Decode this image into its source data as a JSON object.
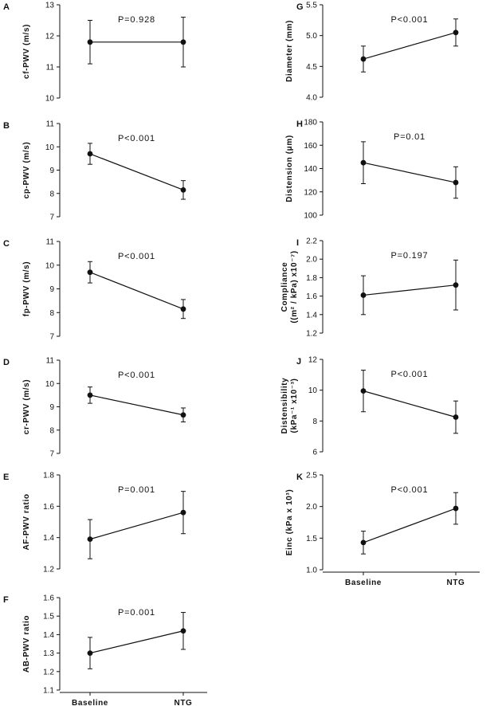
{
  "chart_data": [
    {
      "id": "A",
      "type": "line",
      "panel": "A",
      "ylabel": "cf-PWV (m/s)",
      "categories": [
        "Baseline",
        "NTG"
      ],
      "values": [
        11.8,
        11.8
      ],
      "err": [
        0.7,
        0.8
      ],
      "ylim": [
        10,
        13
      ],
      "yticks": [
        "10",
        "11",
        "12",
        "13"
      ],
      "pvalue": "P=0.928",
      "xlabel": ""
    },
    {
      "id": "B",
      "type": "line",
      "panel": "B",
      "ylabel": "cp-PWV (m/s)",
      "categories": [
        "Baseline",
        "NTG"
      ],
      "values": [
        9.7,
        8.15
      ],
      "err": [
        0.45,
        0.4
      ],
      "ylim": [
        7,
        11
      ],
      "yticks": [
        "7",
        "8",
        "9",
        "10",
        "11"
      ],
      "pvalue": "P<0.001",
      "xlabel": ""
    },
    {
      "id": "C",
      "type": "line",
      "panel": "C",
      "ylabel": "fp-PWV (m/s)",
      "categories": [
        "Baseline",
        "NTG"
      ],
      "values": [
        9.7,
        8.15
      ],
      "err": [
        0.45,
        0.4
      ],
      "ylim": [
        7,
        11
      ],
      "yticks": [
        "7",
        "8",
        "9",
        "10",
        "11"
      ],
      "pvalue": "P<0.001",
      "xlabel": ""
    },
    {
      "id": "D",
      "type": "line",
      "panel": "D",
      "ylabel": "cr-PWV (m/s)",
      "categories": [
        "Baseline",
        "NTG"
      ],
      "values": [
        9.5,
        8.65
      ],
      "err": [
        0.35,
        0.3
      ],
      "ylim": [
        7,
        11
      ],
      "yticks": [
        "7",
        "8",
        "9",
        "10",
        "11"
      ],
      "pvalue": "P<0.001",
      "xlabel": ""
    },
    {
      "id": "E",
      "type": "line",
      "panel": "E",
      "ylabel": "AF-PWV ratio",
      "categories": [
        "Baseline",
        "NTG"
      ],
      "values": [
        1.39,
        1.56
      ],
      "err": [
        0.125,
        0.135
      ],
      "ylim": [
        1.2,
        1.8
      ],
      "yticks": [
        "1.2",
        "1.4",
        "1.6",
        "1.8"
      ],
      "pvalue": "P=0.001",
      "xlabel": ""
    },
    {
      "id": "F",
      "type": "line",
      "panel": "F",
      "ylabel": "AB-PWV ratio",
      "categories": [
        "Baseline",
        "NTG"
      ],
      "values": [
        1.3,
        1.42
      ],
      "err": [
        0.085,
        0.1
      ],
      "ylim": [
        1.1,
        1.6
      ],
      "yticks": [
        "1.1",
        "1.2",
        "1.3",
        "1.4",
        "1.5",
        "1.6"
      ],
      "pvalue": "P=0.001",
      "xlabel": "",
      "xticks": [
        "Baseline",
        "NTG"
      ]
    },
    {
      "id": "G",
      "type": "line",
      "panel": "G",
      "ylabel": "Diameter (mm)",
      "categories": [
        "Baseline",
        "NTG"
      ],
      "values": [
        4.62,
        5.05
      ],
      "err": [
        0.21,
        0.22
      ],
      "ylim": [
        4.0,
        5.5
      ],
      "yticks": [
        "4.0",
        "4.5",
        "5.0",
        "5.5"
      ],
      "pvalue": "P<0.001",
      "xlabel": ""
    },
    {
      "id": "H",
      "type": "line",
      "panel": "H",
      "ylabel": "Distension (μm)",
      "categories": [
        "Baseline",
        "NTG"
      ],
      "values": [
        145,
        128
      ],
      "err": [
        18,
        13.5
      ],
      "ylim": [
        100,
        180
      ],
      "yticks": [
        "100",
        "120",
        "140",
        "160",
        "180"
      ],
      "pvalue": "P=0.01",
      "xlabel": ""
    },
    {
      "id": "I",
      "type": "line",
      "panel": "I",
      "ylabel_lines": [
        "Compliance",
        "((m² / kPa) x10⁻⁷)"
      ],
      "categories": [
        "Baseline",
        "NTG"
      ],
      "values": [
        1.61,
        1.72
      ],
      "err": [
        0.21,
        0.27
      ],
      "ylim": [
        1.2,
        2.2
      ],
      "yticks": [
        "1.2",
        "1.4",
        "1.6",
        "1.8",
        "2.0",
        "2.2"
      ],
      "pvalue": "P=0.197",
      "xlabel": ""
    },
    {
      "id": "J",
      "type": "line",
      "panel": "J",
      "ylabel_lines": [
        "Distensibility",
        "(kPa⁻¹ x10⁻³)"
      ],
      "categories": [
        "Baseline",
        "NTG"
      ],
      "values": [
        9.95,
        8.25
      ],
      "err": [
        1.35,
        1.05
      ],
      "ylim": [
        6,
        12
      ],
      "yticks": [
        "6",
        "8",
        "10",
        "12"
      ],
      "pvalue": "P<0.001",
      "xlabel": ""
    },
    {
      "id": "K",
      "type": "line",
      "panel": "K",
      "ylabel": "Einc (kPa x 10³)",
      "categories": [
        "Baseline",
        "NTG"
      ],
      "values": [
        1.43,
        1.97
      ],
      "err": [
        0.18,
        0.25
      ],
      "ylim": [
        1.0,
        2.5
      ],
      "yticks": [
        "1.0",
        "1.5",
        "2.0",
        "2.5"
      ],
      "pvalue": "P<0.001",
      "xlabel": "",
      "xticks": [
        "Baseline",
        "NTG"
      ]
    }
  ]
}
